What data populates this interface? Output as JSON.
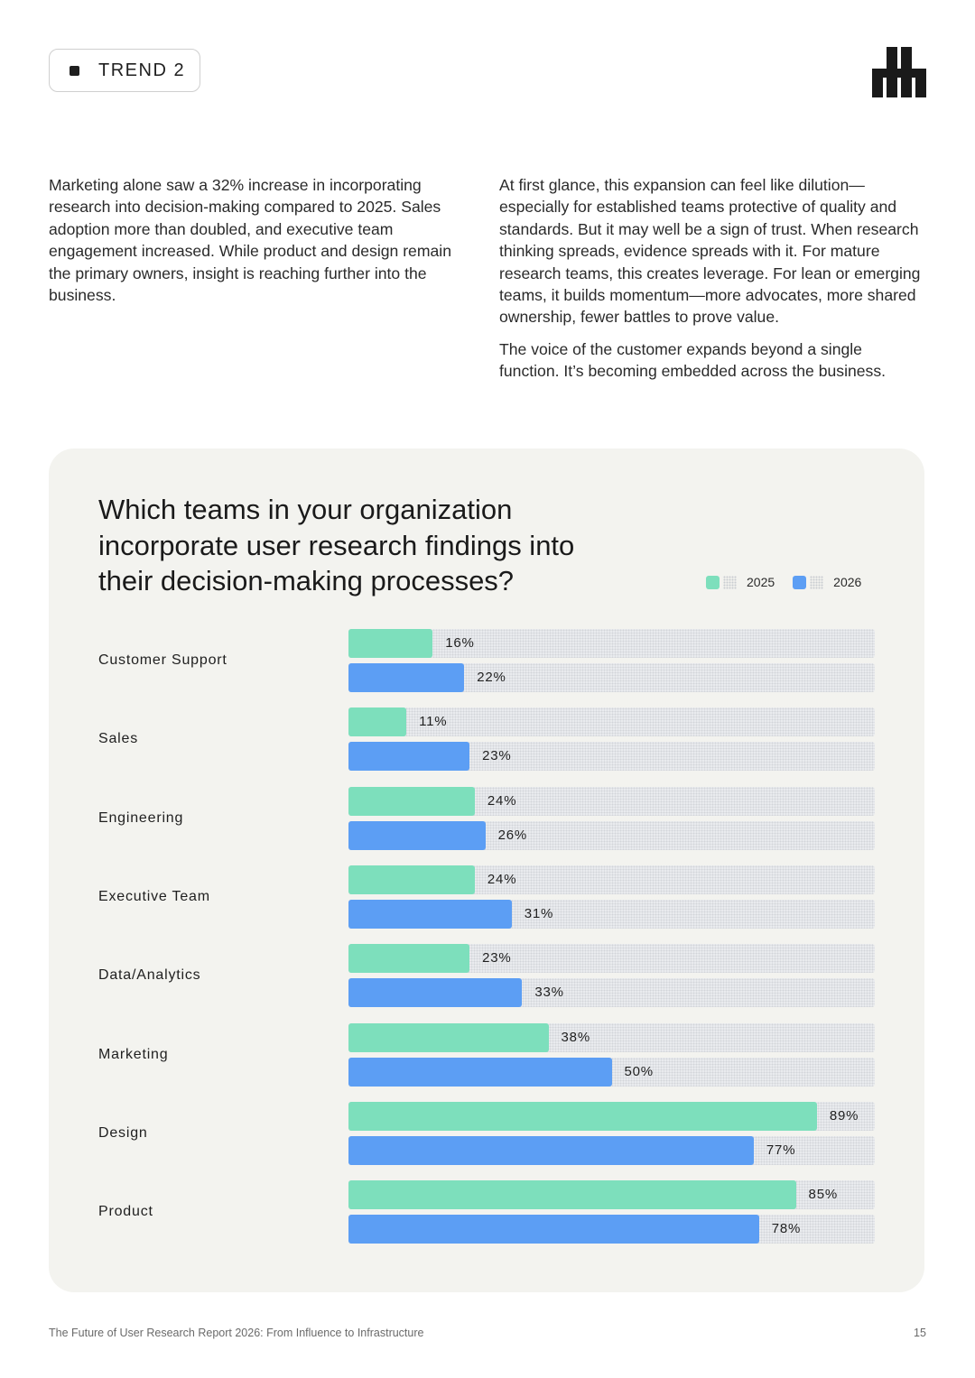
{
  "header": {
    "trend_label": "TREND 2"
  },
  "body_text": {
    "left": "Marketing alone saw a 32% increase in incorporating research into decision-making compared to 2025. Sales adoption more than doubled, and executive team engagement increased. While product and design remain the primary owners, insight is reaching further into the business.",
    "right_p1": "At first glance, this expansion can feel like dilution—especially for established teams protective of quality and standards. But it may well be a sign of trust. When research thinking spreads, evidence spreads with it. For mature research teams, this creates leverage. For lean or emerging teams, it builds momentum—more advocates, more shared ownership, fewer battles to prove value.",
    "right_p2": "The voice of the customer expands beyond a single function. It’s becoming embedded across the business."
  },
  "chart_data": {
    "type": "bar",
    "orientation": "horizontal",
    "title": "Which teams in your organization incorporate user research findings into their decision-making processes?",
    "categories": [
      "Customer Support",
      "Sales",
      "Engineering",
      "Executive Team",
      "Data/Analytics",
      "Marketing",
      "Design",
      "Product"
    ],
    "series": [
      {
        "name": "2025",
        "color": "#7ddfbc",
        "values": [
          16,
          11,
          24,
          24,
          23,
          38,
          89,
          85
        ]
      },
      {
        "name": "2026",
        "color": "#5c9ef4",
        "values": [
          22,
          23,
          26,
          31,
          33,
          50,
          77,
          78
        ]
      }
    ],
    "value_suffix": "%",
    "xlim": [
      0,
      100
    ],
    "legend_position": "top-right"
  },
  "footer": {
    "text": "The Future of User Research Report 2026: From Influence to Infrastructure",
    "page_number": "15"
  }
}
